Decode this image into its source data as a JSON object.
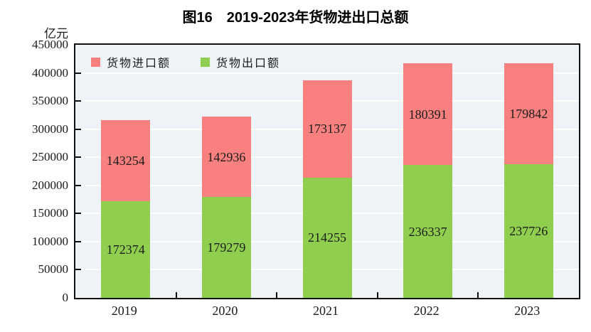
{
  "chart_data": {
    "type": "bar",
    "stacked": true,
    "title": "图16　2019-2023年货物进出口总额",
    "unit_label": "亿元",
    "categories": [
      "2019",
      "2020",
      "2021",
      "2022",
      "2023"
    ],
    "series": [
      {
        "key": "import",
        "name": "货物进口额",
        "color": "#f8807f",
        "values": [
          143254,
          142936,
          173137,
          180391,
          179842
        ]
      },
      {
        "key": "export",
        "name": "货物出口额",
        "color": "#90ce50",
        "values": [
          172374,
          179279,
          214255,
          236337,
          237726
        ]
      }
    ],
    "stack_bottom_to_top": [
      1,
      0
    ],
    "ylim": [
      0,
      450000
    ],
    "ytick_step": 50000,
    "grid": true,
    "legend_position": "inside-top-left",
    "plot_bg": "#edf3f7",
    "gridline_color": "#ffffff",
    "axis_color": "#111111"
  }
}
